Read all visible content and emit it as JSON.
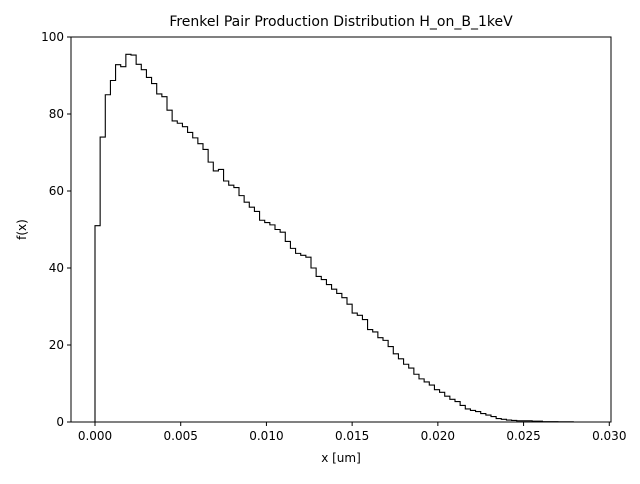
{
  "chart_data": {
    "type": "line",
    "drawstyle": "steps",
    "title": "Frenkel Pair Production Distribution H_on_B_1keV",
    "xlabel": "x [um]",
    "ylabel": "f(x)",
    "xlim": [
      -0.0014,
      0.0301
    ],
    "ylim": [
      0,
      100
    ],
    "grid": false,
    "legend": "none",
    "xticks": [
      0.0,
      0.005,
      0.01,
      0.015,
      0.02,
      0.025,
      0.03
    ],
    "xtick_labels": [
      "0.000",
      "0.005",
      "0.010",
      "0.015",
      "0.020",
      "0.025",
      "0.030"
    ],
    "yticks": [
      0,
      20,
      40,
      60,
      80,
      100
    ],
    "ytick_labels": [
      "0",
      "20",
      "40",
      "60",
      "80",
      "100"
    ],
    "bin_width": 0.0003,
    "series": [
      {
        "color": "#000000",
        "x_start": 0.0,
        "values": [
          51,
          74,
          85,
          88.7,
          92.8,
          92.3,
          95.5,
          95.3,
          92.9,
          91.5,
          89.5,
          87.9,
          85.2,
          84.5,
          81.0,
          78.2,
          77.6,
          76.7,
          75.2,
          73.8,
          72.3,
          70.8,
          67.5,
          65.2,
          65.6,
          62.6,
          61.5,
          60.9,
          58.8,
          57.1,
          55.8,
          54.7,
          52.4,
          51.8,
          51.2,
          50.0,
          49.3,
          46.9,
          45.1,
          43.8,
          43.3,
          42.8,
          40.0,
          37.8,
          37.0,
          35.7,
          34.5,
          33.4,
          32.3,
          30.6,
          28.3,
          27.7,
          26.6,
          24.0,
          23.4,
          21.9,
          21.2,
          19.6,
          17.7,
          16.4,
          15.0,
          14.0,
          12.4,
          11.2,
          10.4,
          9.6,
          8.4,
          7.7,
          6.7,
          5.9,
          5.3,
          4.3,
          3.4,
          3.0,
          2.7,
          2.2,
          1.8,
          1.4,
          0.9,
          0.7,
          0.5,
          0.4,
          0.3,
          0.3,
          0.3,
          0.2,
          0.2,
          0.1,
          0.1,
          0.1,
          0.05,
          0.05,
          0.05,
          0.0,
          0.0,
          0.0,
          0.0
        ]
      }
    ]
  }
}
